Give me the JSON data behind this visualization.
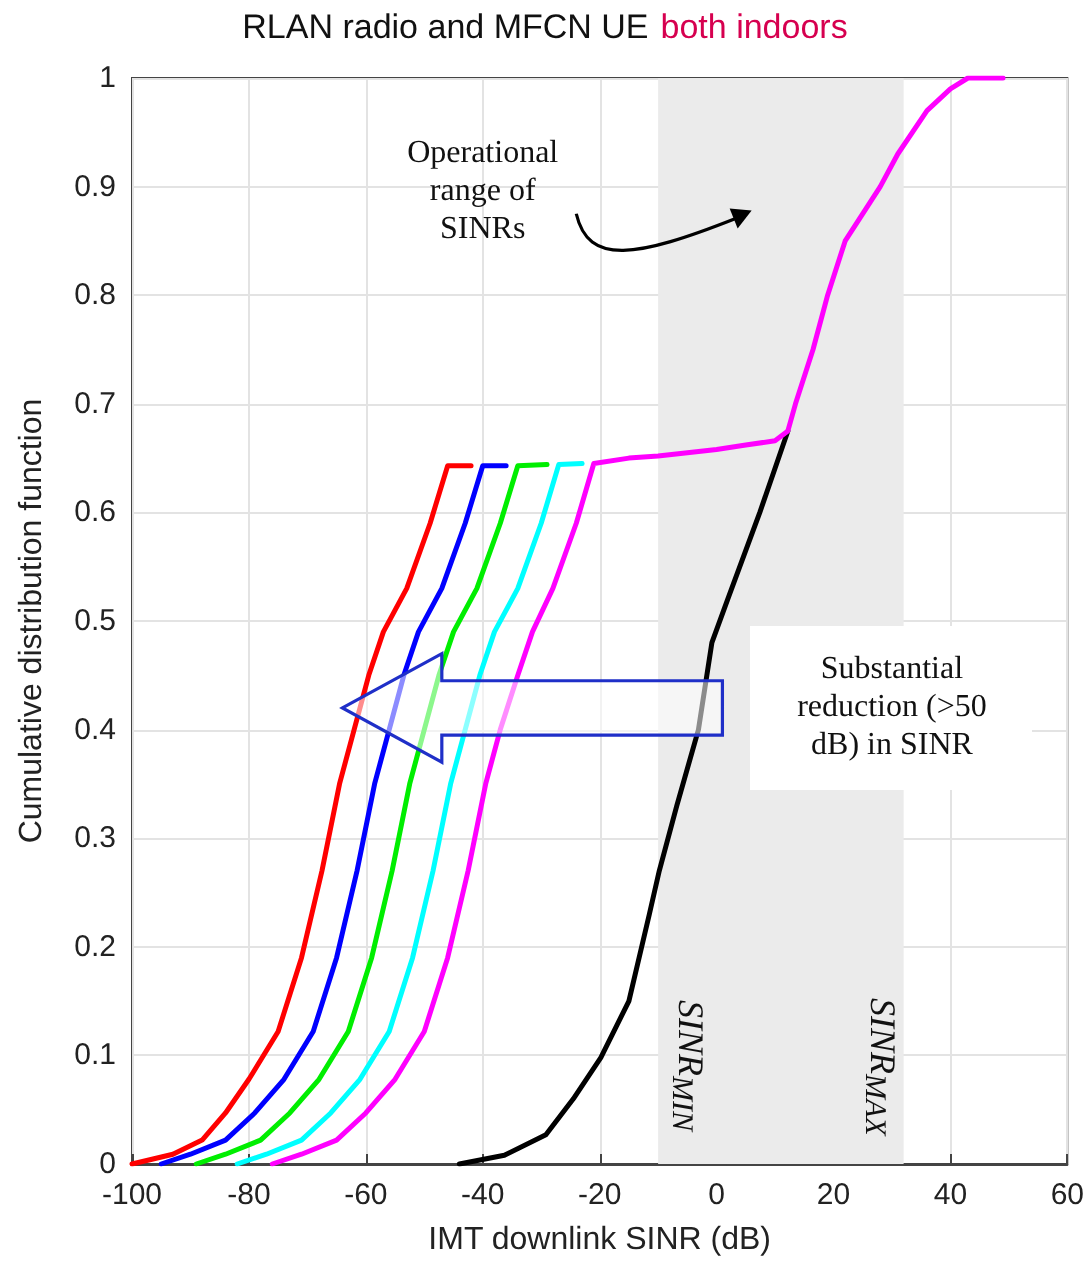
{
  "chart_data": {
    "type": "line",
    "title": "RLAN radio and MFCN UE",
    "subtitle": "both indoors",
    "xlabel": "IMT downlink SINR (dB)",
    "ylabel": "Cumulative distribution function",
    "xlim": [
      -100,
      60
    ],
    "xticks": [
      -100,
      -80,
      -60,
      -40,
      -20,
      0,
      20,
      40,
      60
    ],
    "ylim": [
      0,
      1
    ],
    "yticks": [
      0,
      0.1,
      0.2,
      0.3,
      0.4,
      0.5,
      0.6,
      0.7,
      0.8,
      0.9,
      1
    ],
    "grid": true,
    "legend": false,
    "marker": "none",
    "line_style": "solid",
    "bands": [
      {
        "axis": "x",
        "from": -10,
        "to": 32,
        "color": "#ebebeb"
      }
    ],
    "annotations": [
      "Operational range of SINRs",
      "Substantial reduction (>50 dB) in SINR",
      "SINR$_{MIN}$",
      "SINR$_{MAX}$"
    ],
    "series": [
      {
        "color": "#000000",
        "x": [
          -44,
          -36.3,
          -29.2,
          -24.5,
          -19.8,
          -15,
          -11.5,
          -9.8,
          -6.8,
          -3.1,
          -0.8,
          1.9,
          7.4,
          12.2
        ],
        "values": [
          0,
          0.008,
          0.027,
          0.06,
          0.098,
          0.15,
          0.23,
          0.27,
          0.33,
          0.4,
          0.48,
          0.52,
          0.6,
          0.675
        ]
      },
      {
        "color": "#ff0000",
        "x": [
          -100,
          -93,
          -88,
          -84,
          -80,
          -75,
          -71,
          -67.5,
          -64.5,
          -62,
          -59.5,
          -57,
          -53,
          -49,
          -46,
          -42
        ],
        "values": [
          0,
          0.009,
          0.022,
          0.047,
          0.078,
          0.122,
          0.19,
          0.27,
          0.35,
          0.4,
          0.45,
          0.49,
          0.53,
          0.59,
          0.643,
          0.643
        ]
      },
      {
        "color": "#0000ff",
        "x": [
          -95,
          -90,
          -84,
          -79,
          -74,
          -69,
          -65,
          -61.5,
          -58.5,
          -56,
          -53.5,
          -51,
          -47,
          -43,
          -40,
          -36
        ],
        "values": [
          0,
          0.009,
          0.022,
          0.047,
          0.078,
          0.122,
          0.19,
          0.27,
          0.35,
          0.4,
          0.45,
          0.49,
          0.53,
          0.59,
          0.643,
          0.643
        ]
      },
      {
        "color": "#00ee00",
        "x": [
          -89,
          -84,
          -78,
          -73,
          -68,
          -63,
          -59,
          -55.5,
          -52.5,
          -50,
          -47.5,
          -45,
          -41,
          -37,
          -34,
          -29
        ],
        "values": [
          0,
          0.009,
          0.022,
          0.047,
          0.078,
          0.122,
          0.19,
          0.27,
          0.35,
          0.4,
          0.45,
          0.49,
          0.53,
          0.59,
          0.643,
          0.644
        ]
      },
      {
        "color": "#00ffff",
        "x": [
          -82,
          -77,
          -71,
          -66,
          -61,
          -56,
          -52,
          -48.5,
          -45.5,
          -43,
          -40.5,
          -38,
          -34,
          -30,
          -27,
          -23
        ],
        "values": [
          0,
          0.009,
          0.022,
          0.047,
          0.078,
          0.122,
          0.19,
          0.27,
          0.35,
          0.4,
          0.45,
          0.49,
          0.53,
          0.59,
          0.644,
          0.645
        ]
      },
      {
        "color": "#ff00ff",
        "x": [
          -76,
          -71,
          -65,
          -60,
          -55,
          -50,
          -46,
          -42.5,
          -39.5,
          -37,
          -34,
          -31.5,
          -28,
          -24,
          -21,
          -15,
          -10,
          0,
          5,
          10,
          12.2,
          13.5,
          16.5,
          19,
          22,
          28,
          31,
          36,
          40,
          43,
          49
        ],
        "values": [
          0,
          0.009,
          0.022,
          0.047,
          0.078,
          0.122,
          0.19,
          0.27,
          0.35,
          0.4,
          0.45,
          0.49,
          0.53,
          0.59,
          0.645,
          0.65,
          0.652,
          0.658,
          0.662,
          0.666,
          0.675,
          0.7,
          0.75,
          0.8,
          0.85,
          0.9,
          0.93,
          0.97,
          0.99,
          1,
          1
        ]
      }
    ]
  }
}
